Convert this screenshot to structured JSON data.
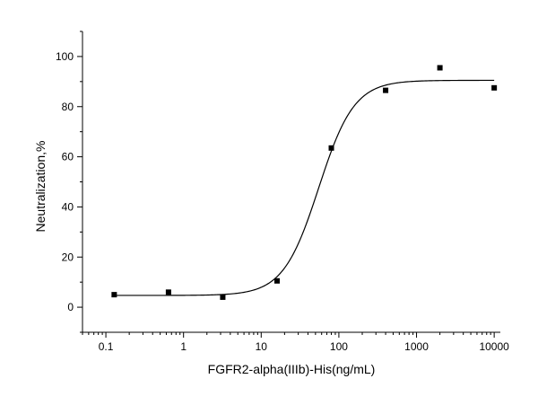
{
  "chart_data": {
    "type": "scatter",
    "title": "",
    "xlabel": "FGFR2-alpha(IIIb)-His(ng/mL)",
    "ylabel": "Neutralization,%",
    "xscale": "log",
    "xlim": [
      0.05,
      12000
    ],
    "ylim": [
      -10,
      110
    ],
    "xticks": [
      {
        "value": 0.1,
        "label": "0.1"
      },
      {
        "value": 1,
        "label": "1"
      },
      {
        "value": 10,
        "label": "10"
      },
      {
        "value": 100,
        "label": "100"
      },
      {
        "value": 1000,
        "label": "1000"
      },
      {
        "value": 10000,
        "label": "10000"
      }
    ],
    "yticks": [
      {
        "value": 0,
        "label": "0"
      },
      {
        "value": 20,
        "label": "20"
      },
      {
        "value": 40,
        "label": "40"
      },
      {
        "value": 60,
        "label": "60"
      },
      {
        "value": 80,
        "label": "80"
      },
      {
        "value": 100,
        "label": "100"
      }
    ],
    "grid": false,
    "legend": "none",
    "marker": "square",
    "color": "#000000",
    "series": [
      {
        "x": [
          0.128,
          0.64,
          3.2,
          16,
          80,
          400,
          2000,
          10000
        ],
        "y": [
          5,
          6,
          4,
          10.5,
          63.5,
          86.5,
          95.5,
          87.5
        ]
      }
    ],
    "fit_curve": {
      "model": "four-parameter logistic",
      "bottom": 4.7,
      "top": 90.5,
      "ec50": 55,
      "hill": 1.9
    }
  }
}
